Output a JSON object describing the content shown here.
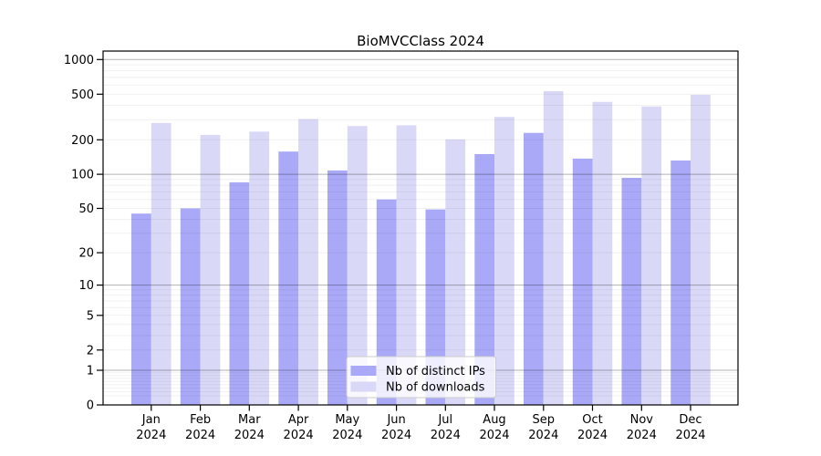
{
  "chart_data": {
    "type": "bar",
    "title": "BioMVCClass 2024",
    "x": {
      "months": [
        "Jan",
        "Feb",
        "Mar",
        "Apr",
        "May",
        "Jun",
        "Jul",
        "Aug",
        "Sep",
        "Oct",
        "Nov",
        "Dec"
      ],
      "year": "2024"
    },
    "categories": [
      "Jan 2024",
      "Feb 2024",
      "Mar 2024",
      "Apr 2024",
      "May 2024",
      "Jun 2024",
      "Jul 2024",
      "Aug 2024",
      "Sep 2024",
      "Oct 2024",
      "Nov 2024",
      "Dec 2024"
    ],
    "series": [
      {
        "name": "Nb of distinct IPs",
        "color": "#a9a9f7",
        "values": [
          45,
          50,
          85,
          158,
          108,
          60,
          49,
          150,
          230,
          137,
          93,
          132
        ]
      },
      {
        "name": "Nb of downloads",
        "color": "#d9d9f7",
        "values": [
          281,
          221,
          236,
          304,
          264,
          268,
          202,
          317,
          532,
          429,
          391,
          494
        ]
      }
    ],
    "yscale": "log1p",
    "y_ticks": [
      0,
      1,
      2,
      5,
      10,
      20,
      50,
      100,
      200,
      500,
      1000
    ],
    "ylim": [
      0,
      1200
    ],
    "xlabel": "",
    "ylabel": "",
    "grid": "horizontal: light minor log lines, darker lines at powers of 10",
    "legend_position": "inside lower-center",
    "colors": {
      "spine": "#000000",
      "major_grid": "rgba(0,0,0,0.30)",
      "minor_grid": "rgba(0,0,0,0.055)",
      "legend_border": "#cccccc",
      "legend_background": "rgba(255,255,255,0.8)"
    }
  }
}
